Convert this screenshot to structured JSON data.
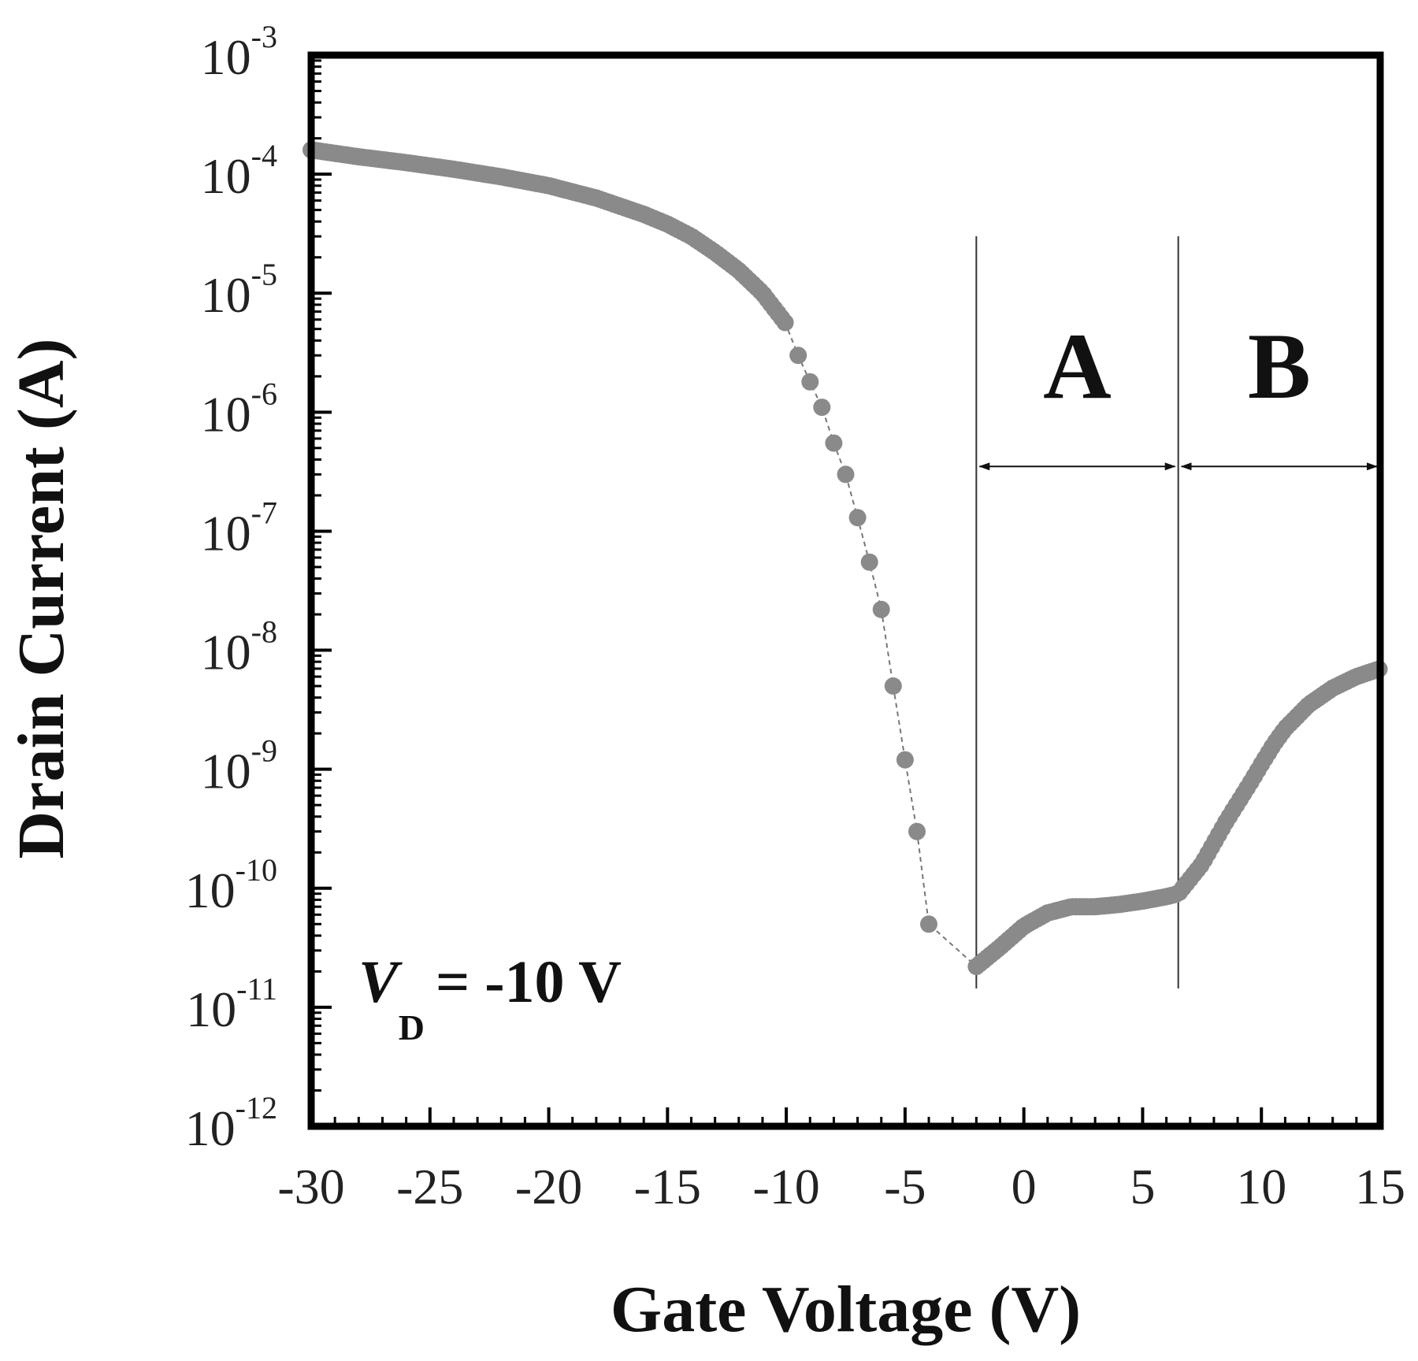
{
  "chart_data": {
    "type": "scatter",
    "xlabel": "Gate Voltage (V)",
    "ylabel": "Drain Current (A)",
    "xlim": [
      -30,
      15
    ],
    "ylim": [
      1e-12,
      0.001
    ],
    "yscale": "log",
    "x_ticks": [
      {
        "value": -30,
        "label": "-30"
      },
      {
        "value": -25,
        "label": "-25"
      },
      {
        "value": -20,
        "label": "-20"
      },
      {
        "value": -15,
        "label": "-15"
      },
      {
        "value": -10,
        "label": "-10"
      },
      {
        "value": -5,
        "label": "-5"
      },
      {
        "value": 0,
        "label": "0"
      },
      {
        "value": 5,
        "label": "5"
      },
      {
        "value": 10,
        "label": "10"
      },
      {
        "value": 15,
        "label": "15"
      }
    ],
    "y_ticks": [
      {
        "exp": -3,
        "base": "10",
        "sup": "-3"
      },
      {
        "exp": -4,
        "base": "10",
        "sup": "-4"
      },
      {
        "exp": -5,
        "base": "10",
        "sup": "-5"
      },
      {
        "exp": -6,
        "base": "10",
        "sup": "-6"
      },
      {
        "exp": -7,
        "base": "10",
        "sup": "-7"
      },
      {
        "exp": -8,
        "base": "10",
        "sup": "-8"
      },
      {
        "exp": -9,
        "base": "10",
        "sup": "-9"
      },
      {
        "exp": -10,
        "base": "10",
        "sup": "-10"
      },
      {
        "exp": -11,
        "base": "10",
        "sup": "-11"
      },
      {
        "exp": -12,
        "base": "10",
        "sup": "-12"
      }
    ],
    "grid": false,
    "marker_color": "#8a8a8a",
    "line_color": "#777777",
    "dense_curve": [
      [
        -30,
        0.00016
      ],
      [
        -28,
        0.00014
      ],
      [
        -26,
        0.000125
      ],
      [
        -24,
        0.00011
      ],
      [
        -22,
        9.5e-05
      ],
      [
        -20,
        8e-05
      ],
      [
        -18,
        6.3e-05
      ],
      [
        -16,
        4.6e-05
      ],
      [
        -15,
        3.8e-05
      ],
      [
        -14,
        3e-05
      ],
      [
        -13,
        2.2e-05
      ],
      [
        -12,
        1.55e-05
      ],
      [
        -11,
        1e-05
      ],
      [
        -10,
        5.5e-06
      ]
    ],
    "sparse_points": [
      [
        -9.5,
        3e-06
      ],
      [
        -9.0,
        1.8e-06
      ],
      [
        -8.5,
        1.1e-06
      ],
      [
        -8.0,
        5.5e-07
      ],
      [
        -7.5,
        3e-07
      ],
      [
        -7.0,
        1.3e-07
      ],
      [
        -6.5,
        5.5e-08
      ],
      [
        -6.0,
        2.2e-08
      ],
      [
        -5.5,
        5e-09
      ],
      [
        -5.0,
        1.2e-09
      ],
      [
        -4.5,
        3e-10
      ],
      [
        -4.0,
        5e-11
      ]
    ],
    "regions": [
      {
        "label": "A",
        "x_start": -2,
        "x_end": 6.5
      },
      {
        "label": "B",
        "x_start": 6.5,
        "x_end": 15
      }
    ],
    "region_arrow_y": 3.5e-07,
    "annotation": {
      "symbol": "V",
      "subscript": "D",
      "text": "= -10 V"
    }
  }
}
